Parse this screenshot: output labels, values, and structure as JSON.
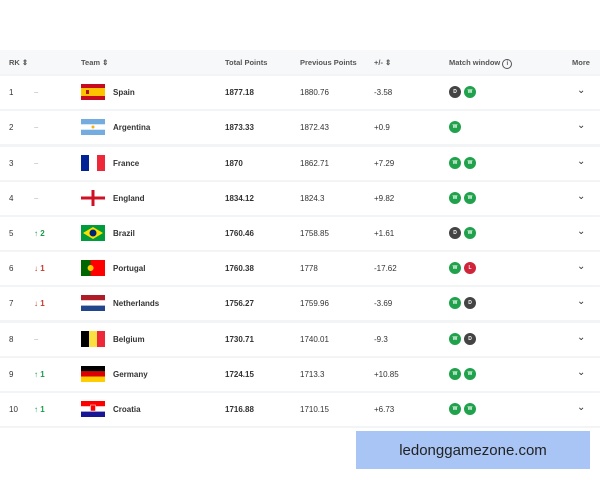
{
  "header": {
    "rk": "RK",
    "team": "Team",
    "total": "Total Points",
    "previous": "Previous Points",
    "diff": "+/-",
    "match_window": "Match window",
    "more": "More"
  },
  "rows": [
    {
      "rank": "1",
      "move": "–",
      "dir": "none",
      "team": "Spain",
      "flag": "spain",
      "total": "1877.18",
      "previous": "1880.76",
      "diff": "-3.58",
      "results": [
        "D",
        "W"
      ]
    },
    {
      "rank": "2",
      "move": "–",
      "dir": "none",
      "team": "Argentina",
      "flag": "argentina",
      "total": "1873.33",
      "previous": "1872.43",
      "diff": "+0.9",
      "results": [
        "W"
      ]
    },
    {
      "rank": "3",
      "move": "–",
      "dir": "none",
      "team": "France",
      "flag": "france",
      "total": "1870",
      "previous": "1862.71",
      "diff": "+7.29",
      "results": [
        "W",
        "W"
      ]
    },
    {
      "rank": "4",
      "move": "–",
      "dir": "none",
      "team": "England",
      "flag": "england",
      "total": "1834.12",
      "previous": "1824.3",
      "diff": "+9.82",
      "results": [
        "W",
        "W"
      ]
    },
    {
      "rank": "5",
      "move": "2",
      "dir": "up",
      "team": "Brazil",
      "flag": "brazil",
      "total": "1760.46",
      "previous": "1758.85",
      "diff": "+1.61",
      "results": [
        "D",
        "W"
      ]
    },
    {
      "rank": "6",
      "move": "1",
      "dir": "down",
      "team": "Portugal",
      "flag": "portugal",
      "total": "1760.38",
      "previous": "1778",
      "diff": "-17.62",
      "results": [
        "W",
        "L"
      ]
    },
    {
      "rank": "7",
      "move": "1",
      "dir": "down",
      "team": "Netherlands",
      "flag": "netherlands",
      "total": "1756.27",
      "previous": "1759.96",
      "diff": "-3.69",
      "results": [
        "W",
        "D"
      ]
    },
    {
      "rank": "8",
      "move": "–",
      "dir": "none",
      "team": "Belgium",
      "flag": "belgium",
      "total": "1730.71",
      "previous": "1740.01",
      "diff": "-9.3",
      "results": [
        "W",
        "D"
      ]
    },
    {
      "rank": "9",
      "move": "1",
      "dir": "up",
      "team": "Germany",
      "flag": "germany",
      "total": "1724.15",
      "previous": "1713.3",
      "diff": "+10.85",
      "results": [
        "W",
        "W"
      ]
    },
    {
      "rank": "10",
      "move": "1",
      "dir": "up",
      "team": "Croatia",
      "flag": "croatia",
      "total": "1716.88",
      "previous": "1710.15",
      "diff": "+6.73",
      "results": [
        "W",
        "W"
      ]
    }
  ],
  "watermark": "ledonggamezone.com",
  "colors": {
    "win": "#1fa24b",
    "draw": "#444444",
    "loss": "#d0243a",
    "up": "#1a9a4a",
    "down": "#c0392b"
  }
}
